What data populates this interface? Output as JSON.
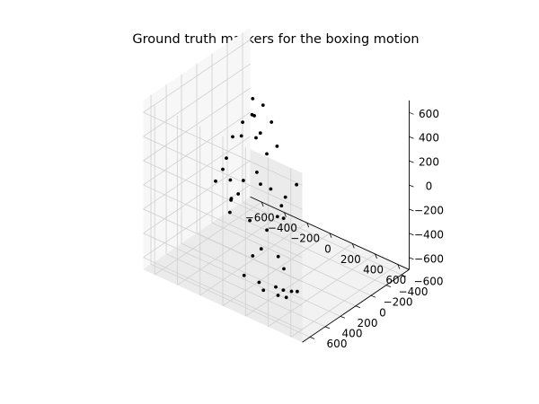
{
  "chart_data": {
    "type": "scatter",
    "projection": "3d",
    "title": "Ground truth markers for the boxing motion",
    "xlabel": "",
    "ylabel": "",
    "zlabel": "",
    "grid": true,
    "xlim": [
      -700,
      700
    ],
    "ylim": [
      -700,
      700
    ],
    "zlim": [
      -700,
      700
    ],
    "x_ticks": [
      -600,
      -400,
      -200,
      0,
      200,
      400,
      600
    ],
    "y_ticks": [
      -600,
      -400,
      -200,
      0,
      200,
      400,
      600
    ],
    "z_ticks": [
      -600,
      -400,
      -200,
      0,
      200,
      400,
      600
    ],
    "marker_color": "#000000",
    "points": [
      {
        "x": -195,
        "y": 18,
        "z": 638
      },
      {
        "x": -95,
        "y": 32,
        "z": 633
      },
      {
        "x": -195,
        "y": 27,
        "z": 509
      },
      {
        "x": -186,
        "y": 10,
        "z": 497
      },
      {
        "x": -240,
        "y": 83,
        "z": 452
      },
      {
        "x": -240,
        "y": 100,
        "z": 345
      },
      {
        "x": -35,
        "y": 10,
        "z": 509
      },
      {
        "x": 16,
        "y": 13,
        "z": 333
      },
      {
        "x": -132,
        "y": 12,
        "z": 378
      },
      {
        "x": -145,
        "y": 49,
        "z": 349
      },
      {
        "x": 16,
        "y": 147,
        "z": 327
      },
      {
        "x": -340,
        "y": 65,
        "z": 280
      },
      {
        "x": -383,
        "y": 83,
        "z": 93
      },
      {
        "x": -433,
        "y": 56,
        "z": -33
      },
      {
        "x": -425,
        "y": 162,
        "z": -82
      },
      {
        "x": -350,
        "y": 81,
        "z": -75
      },
      {
        "x": -255,
        "y": 118,
        "z": -133
      },
      {
        "x": -290,
        "y": 162,
        "z": -181
      },
      {
        "x": -290,
        "y": 157,
        "z": -170
      },
      {
        "x": -305,
        "y": 153,
        "z": -292
      },
      {
        "x": -140,
        "y": 46,
        "z": 64
      },
      {
        "x": -190,
        "y": 148,
        "z": 19
      },
      {
        "x": -88,
        "y": 75,
        "z": 1
      },
      {
        "x": 158,
        "y": -31,
        "z": 57
      },
      {
        "x": -3,
        "y": 67,
        "z": -6
      },
      {
        "x": -88,
        "y": 215,
        "z": -240
      },
      {
        "x": 99,
        "y": 79,
        "z": -96
      },
      {
        "x": 118,
        "y": 160,
        "z": -143
      },
      {
        "x": 160,
        "y": 142,
        "z": -146
      },
      {
        "x": 70,
        "y": -16,
        "z": -78
      },
      {
        "x": 77,
        "y": 237,
        "z": -239
      },
      {
        "x": -75,
        "y": 85,
        "z": -525
      },
      {
        "x": -152,
        "y": 82,
        "z": -617
      },
      {
        "x": -170,
        "y": 168,
        "z": -750
      },
      {
        "x": 76,
        "y": 87,
        "z": -523
      },
      {
        "x": 119,
        "y": 77,
        "z": -610
      },
      {
        "x": 34,
        "y": 56,
        "z": -805
      },
      {
        "x": 91,
        "y": 42,
        "z": -813
      },
      {
        "x": -107,
        "y": 66,
        "z": -824
      },
      {
        "x": 110,
        "y": 32,
        "z": -870
      },
      {
        "x": 120,
        "y": -22,
        "z": -838
      },
      {
        "x": -104,
        "y": 14,
        "z": -910
      },
      {
        "x": 39,
        "y": 35,
        "z": -882
      },
      {
        "x": 122,
        "y": -94,
        "z": -870
      }
    ]
  }
}
